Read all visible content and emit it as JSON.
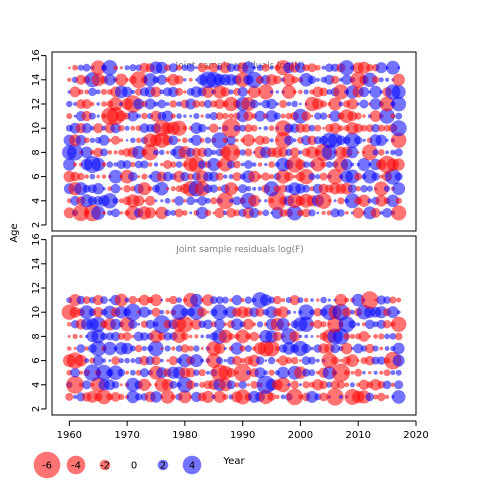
{
  "chart_data": {
    "type": "scatter",
    "subtype": "bubble",
    "shared_axes": {
      "ylabel": "Age",
      "xlabel": "Year"
    },
    "x_ticks": [
      1960,
      1970,
      1980,
      1990,
      2000,
      2010,
      2020
    ],
    "xlim": [
      1957,
      2020
    ],
    "colors": {
      "negative": "#ff0000",
      "positive": "#0000ff",
      "alpha": 0.55
    },
    "legend": {
      "position": "bottom-left",
      "items": [
        {
          "value": -6,
          "label": "-6"
        },
        {
          "value": -4,
          "label": "-4"
        },
        {
          "value": -2,
          "label": "-2"
        },
        {
          "value": 0,
          "label": "0"
        },
        {
          "value": 2,
          "label": "2"
        },
        {
          "value": 4,
          "label": "4"
        }
      ]
    },
    "panels": [
      {
        "title": "Joint sample residuals log(N)",
        "ages": [
          3,
          4,
          5,
          6,
          7,
          8,
          9,
          10,
          11,
          12,
          13,
          14,
          15
        ],
        "years": [
          1960,
          1961,
          1962,
          1963,
          1964,
          1965,
          1966,
          1967,
          1968,
          1969,
          1970,
          1971,
          1972,
          1973,
          1974,
          1975,
          1976,
          1977,
          1978,
          1979,
          1980,
          1981,
          1982,
          1983,
          1984,
          1985,
          1986,
          1987,
          1988,
          1989,
          1990,
          1991,
          1992,
          1993,
          1994,
          1995,
          1996,
          1997,
          1998,
          1999,
          2000,
          2001,
          2002,
          2003,
          2004,
          2005,
          2006,
          2007,
          2008,
          2009,
          2010,
          2011,
          2012,
          2013,
          2014,
          2015,
          2016,
          2017
        ],
        "y_ticks": [
          2,
          4,
          6,
          8,
          10,
          12,
          14,
          16
        ],
        "ylim": [
          1.5,
          16.3
        ],
        "seed": 7
      },
      {
        "title": "Joint sample residuals log(F)",
        "ages": [
          3,
          4,
          5,
          6,
          7,
          8,
          9,
          10,
          11
        ],
        "years": [
          1960,
          1961,
          1962,
          1963,
          1964,
          1965,
          1966,
          1967,
          1968,
          1969,
          1970,
          1971,
          1972,
          1973,
          1974,
          1975,
          1976,
          1977,
          1978,
          1979,
          1980,
          1981,
          1982,
          1983,
          1984,
          1985,
          1986,
          1987,
          1988,
          1989,
          1990,
          1991,
          1992,
          1993,
          1994,
          1995,
          1996,
          1997,
          1998,
          1999,
          2000,
          2001,
          2002,
          2003,
          2004,
          2005,
          2006,
          2007,
          2008,
          2009,
          2010,
          2011,
          2012,
          2013,
          2014,
          2015,
          2016,
          2017
        ],
        "y_ticks": [
          2,
          4,
          6,
          8,
          10,
          12,
          14,
          16
        ],
        "ylim": [
          1.5,
          16.3
        ],
        "seed": 23
      }
    ]
  }
}
